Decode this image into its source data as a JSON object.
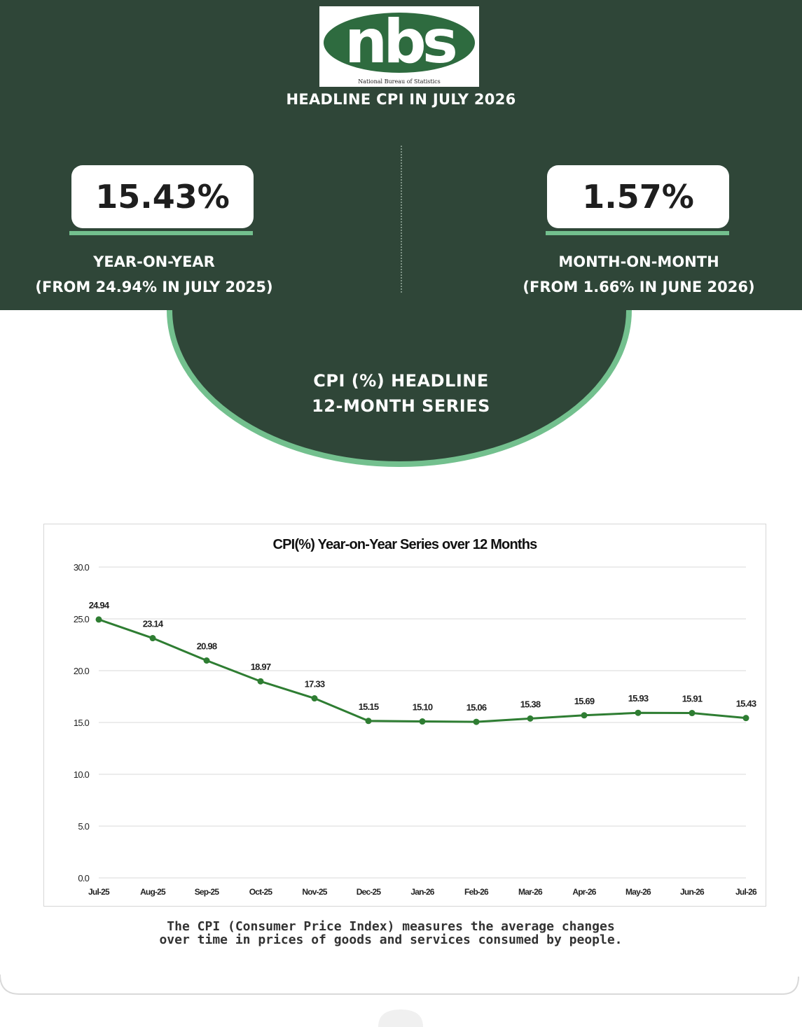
{
  "logo": {
    "text": "nbs",
    "subtext": "National Bureau of Statistics"
  },
  "header": {
    "title": "HEADLINE CPI IN JULY 2026"
  },
  "stats": {
    "yoy": {
      "value": "15.43%",
      "label": "YEAR-ON-YEAR",
      "sub": "(FROM 24.94% IN JULY 2025)"
    },
    "mom": {
      "value": "1.57%",
      "label": "MONTH-ON-MONTH",
      "sub": "(FROM 1.66% IN JUNE 2026)"
    }
  },
  "series_heading": {
    "line1": "CPI (%)  HEADLINE",
    "line2": "12-MONTH SERIES"
  },
  "colors": {
    "dark_green": "#2f4638",
    "accent_green": "#73c08e",
    "line_green": "#2e7d32"
  },
  "chart_data": {
    "type": "line",
    "title": "CPI(%) Year-on-Year Series over 12 Months",
    "categories": [
      "Jul-25",
      "Aug-25",
      "Sep-25",
      "Oct-25",
      "Nov-25",
      "Dec-25",
      "Jan-26",
      "Feb-26",
      "Mar-26",
      "Apr-26",
      "May-26",
      "Jun-26",
      "Jul-26"
    ],
    "values": [
      24.94,
      23.14,
      20.98,
      18.97,
      17.33,
      15.15,
      15.1,
      15.06,
      15.38,
      15.69,
      15.93,
      15.91,
      15.43
    ],
    "data_labels": [
      "24.94",
      "23.14",
      "20.98",
      "18.97",
      "17.33",
      "15.15",
      "15.10",
      "15.06",
      "15.38",
      "15.69",
      "15.93",
      "15.91",
      "15.43"
    ],
    "yticks": [
      "0.0",
      "5.0",
      "10.0",
      "15.0",
      "20.0",
      "25.0",
      "30.0"
    ],
    "ylim": [
      0,
      30
    ],
    "grid": true
  },
  "caption": {
    "line1": "The CPI (Consumer Price Index) measures the average changes",
    "line2": "over time in prices of goods and services consumed by people."
  }
}
